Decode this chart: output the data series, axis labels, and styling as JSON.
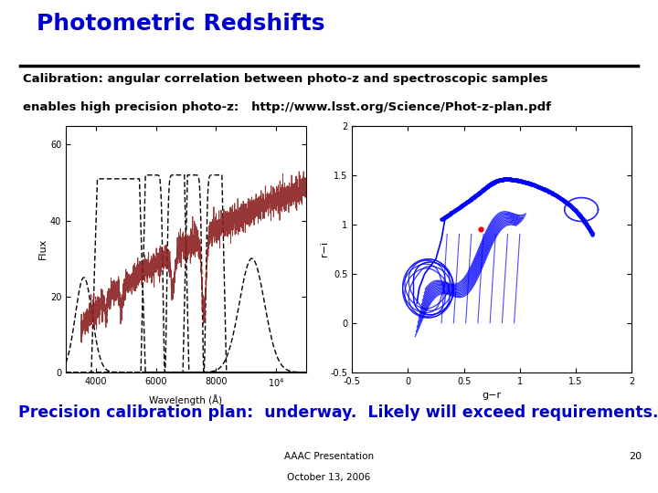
{
  "title": "Photometric Redshifts",
  "subtitle_line1": "Calibration: angular correlation between photo-z and spectroscopic samples",
  "subtitle_line2": "enables high precision photo-z:   http://www.lsst.org/Science/Phot-z-plan.pdf",
  "bottom_text": "Precision calibration plan:  underway.  Likely will exceed requirements.",
  "footer_line1": "AAAC Presentation",
  "footer_line2": "October 13, 2006",
  "page_number": "20",
  "title_color": "#0000CC",
  "subtitle_color": "#000000",
  "bottom_text_color": "#0000CC",
  "footer_color": "#000000",
  "bg_color": "#FFFFFF",
  "left_plot": {
    "xlim": [
      3000,
      11000
    ],
    "ylim": [
      0,
      65
    ],
    "xlabel": "Wavelength (Å)",
    "ylabel": "Flux",
    "yticks": [
      0,
      20,
      40,
      60
    ]
  },
  "right_plot": {
    "xlim": [
      -0.5,
      2.0
    ],
    "ylim": [
      -0.5,
      2.0
    ],
    "xlabel": "g−r",
    "ylabel": "r−i"
  }
}
